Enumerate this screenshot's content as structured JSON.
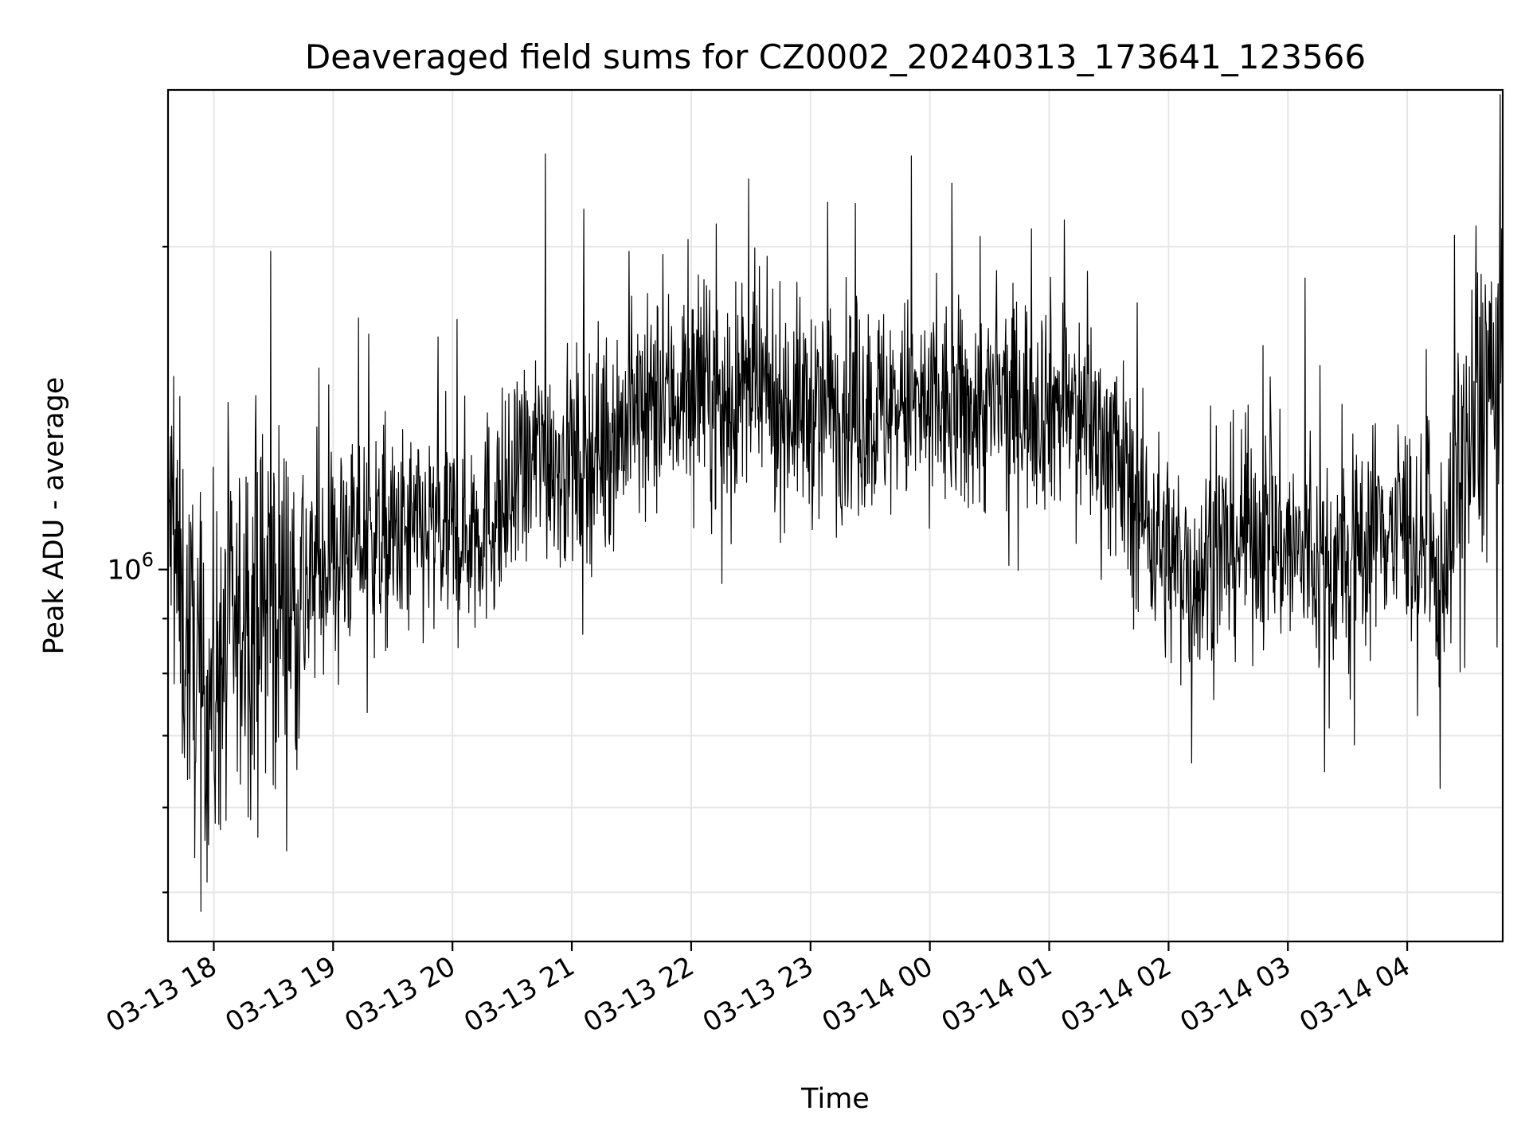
{
  "chart_data": {
    "type": "line",
    "title": "Deaveraged field sums for CZ0002_20240313_173641_123566",
    "xlabel": "Time",
    "ylabel": "Peak ADU - average",
    "y_scale": "log",
    "ylim": [
      450000,
      2800000
    ],
    "xlim": [
      "2024-03-13 17:37",
      "2024-03-14 04:48"
    ],
    "y_tick_labels": [
      {
        "value": 1000000,
        "base": "10",
        "exponent": "6"
      }
    ],
    "x_tick_labels": [
      {
        "value": "2024-03-13 18:00",
        "label": "03-13 18"
      },
      {
        "value": "2024-03-13 19:00",
        "label": "03-13 19"
      },
      {
        "value": "2024-03-13 20:00",
        "label": "03-13 20"
      },
      {
        "value": "2024-03-13 21:00",
        "label": "03-13 21"
      },
      {
        "value": "2024-03-13 22:00",
        "label": "03-13 22"
      },
      {
        "value": "2024-03-13 23:00",
        "label": "03-13 23"
      },
      {
        "value": "2024-03-14 00:00",
        "label": "03-14 00"
      },
      {
        "value": "2024-03-14 01:00",
        "label": "03-14 01"
      },
      {
        "value": "2024-03-14 02:00",
        "label": "03-14 02"
      },
      {
        "value": "2024-03-14 03:00",
        "label": "03-14 03"
      },
      {
        "value": "2024-03-14 04:00",
        "label": "03-14 04"
      }
    ],
    "grid": true,
    "legend": "none",
    "series": [
      {
        "color": "#000000",
        "points": [
          [
            "2024-03-13 17:37",
            1150000
          ],
          [
            "2024-03-13 17:45",
            880000
          ],
          [
            "2024-03-13 17:50",
            820000
          ],
          [
            "2024-03-13 17:55",
            740000
          ],
          [
            "2024-03-13 18:00",
            800000
          ],
          [
            "2024-03-13 18:10",
            860000
          ],
          [
            "2024-03-13 18:20",
            900000
          ],
          [
            "2024-03-13 18:30",
            950000
          ],
          [
            "2024-03-13 18:40",
            940000
          ],
          [
            "2024-03-13 18:50",
            990000
          ],
          [
            "2024-03-13 19:00",
            1040000
          ],
          [
            "2024-03-13 19:15",
            1070000
          ],
          [
            "2024-03-13 19:30",
            1060000
          ],
          [
            "2024-03-13 19:45",
            1080000
          ],
          [
            "2024-03-13 20:00",
            1070000
          ],
          [
            "2024-03-13 20:15",
            1110000
          ],
          [
            "2024-03-13 20:30",
            1160000
          ],
          [
            "2024-03-13 20:45",
            1300000
          ],
          [
            "2024-03-13 21:00",
            1240000
          ],
          [
            "2024-03-13 21:15",
            1320000
          ],
          [
            "2024-03-13 21:30",
            1380000
          ],
          [
            "2024-03-13 21:45",
            1430000
          ],
          [
            "2024-03-13 22:00",
            1480000
          ],
          [
            "2024-03-13 22:15",
            1430000
          ],
          [
            "2024-03-13 22:30",
            1460000
          ],
          [
            "2024-03-13 22:45",
            1430000
          ],
          [
            "2024-03-13 23:00",
            1410000
          ],
          [
            "2024-03-13 23:15",
            1420000
          ],
          [
            "2024-03-13 23:30",
            1400000
          ],
          [
            "2024-03-13 23:45",
            1420000
          ],
          [
            "2024-03-14 00:00",
            1410000
          ],
          [
            "2024-03-14 00:15",
            1400000
          ],
          [
            "2024-03-14 00:30",
            1420000
          ],
          [
            "2024-03-14 00:45",
            1440000
          ],
          [
            "2024-03-14 01:00",
            1440000
          ],
          [
            "2024-03-14 01:15",
            1400000
          ],
          [
            "2024-03-14 01:30",
            1300000
          ],
          [
            "2024-03-14 01:45",
            1150000
          ],
          [
            "2024-03-14 02:00",
            1020000
          ],
          [
            "2024-03-14 02:15",
            1000000
          ],
          [
            "2024-03-14 02:30",
            1060000
          ],
          [
            "2024-03-14 02:45",
            1080000
          ],
          [
            "2024-03-14 03:00",
            1050000
          ],
          [
            "2024-03-14 03:15",
            1000000
          ],
          [
            "2024-03-14 03:30",
            1020000
          ],
          [
            "2024-03-14 03:45",
            1100000
          ],
          [
            "2024-03-14 04:00",
            1110000
          ],
          [
            "2024-03-14 04:15",
            960000
          ],
          [
            "2024-03-14 04:30",
            1250000
          ],
          [
            "2024-03-14 04:40",
            1500000
          ],
          [
            "2024-03-14 04:48",
            1450000
          ]
        ],
        "peaks": [
          [
            "2024-03-13 18:30",
            1980000
          ],
          [
            "2024-03-13 20:48",
            2440000
          ],
          [
            "2024-03-13 21:30",
            1980000
          ],
          [
            "2024-03-13 22:14",
            2100000
          ],
          [
            "2024-03-13 23:10",
            2200000
          ],
          [
            "2024-03-13 23:52",
            2430000
          ],
          [
            "2024-03-14 02:40",
            1400000
          ],
          [
            "2024-03-14 03:10",
            1870000
          ],
          [
            "2024-03-14 04:25",
            2050000
          ]
        ],
        "dips": [
          [
            "2024-03-13 17:55",
            480000
          ],
          [
            "2024-03-13 18:02",
            580000
          ],
          [
            "2024-03-13 21:07",
            870000
          ],
          [
            "2024-03-14 02:13",
            660000
          ],
          [
            "2024-03-14 04:18",
            625000
          ]
        ]
      }
    ]
  }
}
